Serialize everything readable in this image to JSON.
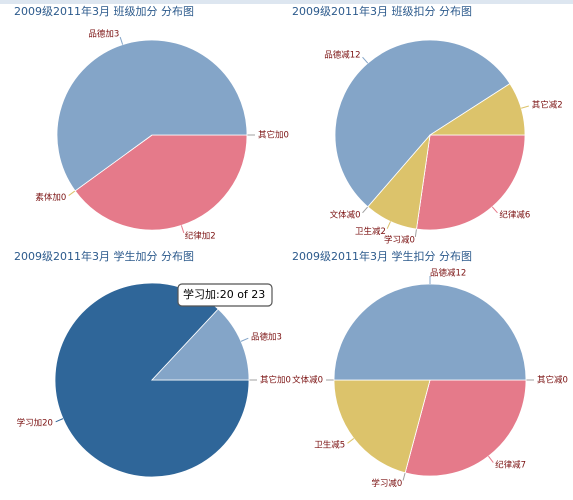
{
  "chart_data": [
    {
      "type": "pie",
      "title": "2009级2011年3月 班级加分 分布图",
      "labels": [
        "其它加0",
        "纪律加2",
        "素体加0",
        "品德加3"
      ],
      "values": [
        0,
        2,
        0,
        3
      ],
      "colors": [
        "#a0a0a0",
        "#e57a8a",
        "#dcc36b",
        "#84a5c8"
      ]
    },
    {
      "type": "pie",
      "title": "2009级2011年3月 班级扣分 分布图",
      "labels": [
        "纪律减6",
        "学习减0",
        "卫生减2",
        "文体减0",
        "品德减12",
        "其它减2"
      ],
      "values": [
        6,
        0,
        2,
        0,
        12,
        2
      ],
      "colors": [
        "#e57a8a",
        "#a0a0a0",
        "#dcc36b",
        "#a0a0a0",
        "#84a5c8",
        "#dcc36b"
      ]
    },
    {
      "type": "pie",
      "title": "2009级2011年3月 学生加分 分布图",
      "labels": [
        "其它加0",
        "学习加20",
        "品德加3"
      ],
      "values": [
        0,
        20,
        3
      ],
      "colors": [
        "#a0a0a0",
        "#2f6699",
        "#84a5c8"
      ],
      "tooltip": "学习加:20 of 23"
    },
    {
      "type": "pie",
      "title": "2009级2011年3月 学生扣分 分布图",
      "labels": [
        "其它减0",
        "纪律减7",
        "学习减0",
        "卫生减5",
        "文体减0",
        "品德减12"
      ],
      "values": [
        0,
        7,
        0,
        5,
        0,
        12
      ],
      "colors": [
        "#a0a0a0",
        "#e57a8a",
        "#a0a0a0",
        "#dcc36b",
        "#a0a0a0",
        "#84a5c8"
      ]
    }
  ]
}
